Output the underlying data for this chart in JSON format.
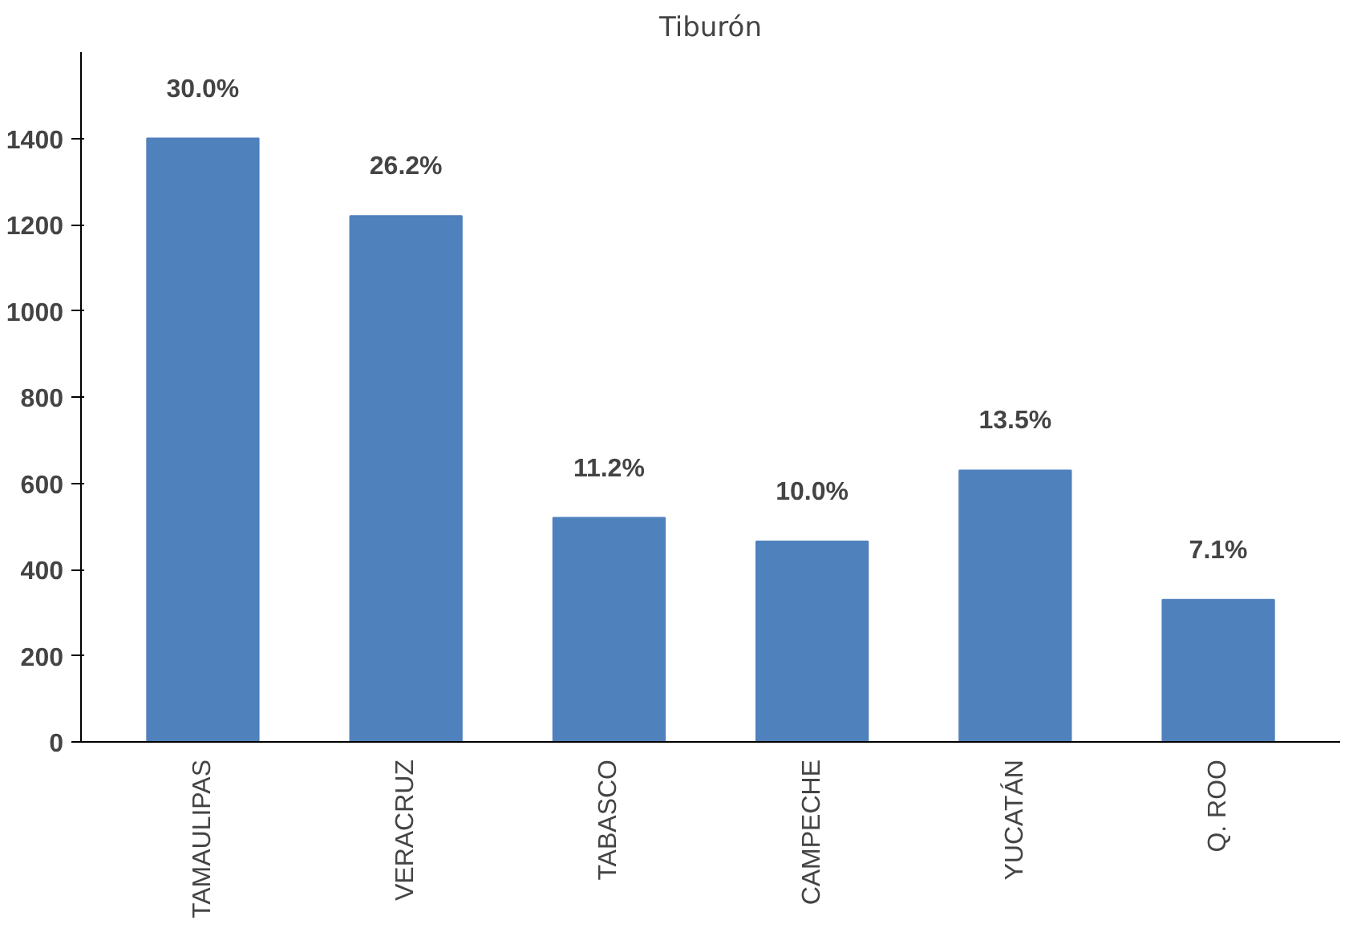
{
  "chart_data": {
    "type": "bar",
    "title": "Tiburón",
    "categories": [
      "TAMAULIPAS",
      "VERACRUZ",
      "TABASCO",
      "CAMPECHE",
      "YUCATÁN",
      "Q. ROO"
    ],
    "values": [
      1400,
      1220,
      520,
      465,
      630,
      330
    ],
    "annotations": [
      {
        "text": "30.0%",
        "x": "TAMAULIPAS",
        "y": 1400
      },
      {
        "text": "26.2%",
        "x": "VERACRUZ",
        "y": 1220
      },
      {
        "text": "11.2%",
        "x": "TABASCO",
        "y": 520
      },
      {
        "text": "10.0%",
        "x": "CAMPECHE",
        "y": 465
      },
      {
        "text": "13.5%",
        "x": "YUCATÁN",
        "y": 630
      },
      {
        "text": "7.1%",
        "x": "Q. ROO",
        "y": 330
      }
    ],
    "color": "#4f81bd",
    "ylim": [
      0,
      1600
    ],
    "yticks": [
      0,
      200,
      400,
      600,
      800,
      1000,
      1200,
      1400
    ],
    "grid": false
  }
}
